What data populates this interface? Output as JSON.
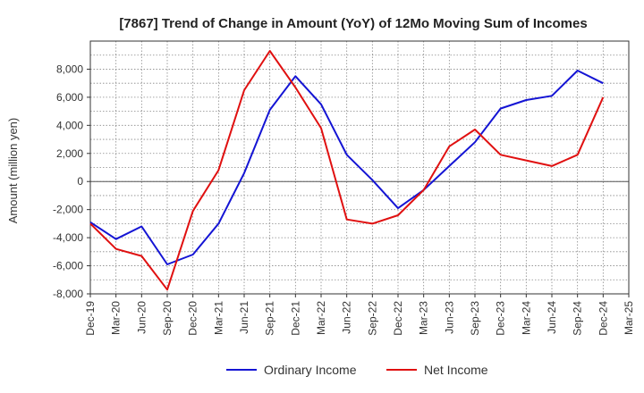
{
  "chart_data": {
    "type": "line",
    "title": "[7867]  Trend of Change in Amount (YoY) of 12Mo Moving Sum of Incomes",
    "ylabel": "Amount (million yen)",
    "xlabel": "",
    "ylim": [
      -8000,
      10000
    ],
    "yticks": [
      -8000,
      -6000,
      -4000,
      -2000,
      0,
      2000,
      4000,
      6000,
      8000
    ],
    "ytick_labels": [
      "-8,000",
      "-6,000",
      "-4,000",
      "-2,000",
      "0",
      "2,000",
      "4,000",
      "6,000",
      "8,000"
    ],
    "x_labels": [
      "Dec-19",
      "Mar-20",
      "Jun-20",
      "Sep-20",
      "Dec-20",
      "Mar-21",
      "Jun-21",
      "Sep-21",
      "Dec-21",
      "Mar-22",
      "Jun-22",
      "Sep-22",
      "Dec-22",
      "Mar-23",
      "Jun-23",
      "Sep-23",
      "Dec-23",
      "Mar-24",
      "Jun-24",
      "Sep-24",
      "Dec-24",
      "Mar-25"
    ],
    "grid": true,
    "legend_position": "bottom",
    "series": [
      {
        "name": "Ordinary Income",
        "color": "#1414d4",
        "values": [
          -2900,
          -4100,
          -3200,
          -5900,
          -5200,
          -3000,
          600,
          5100,
          7500,
          5500,
          1900,
          100,
          -1900,
          -600,
          1100,
          2800,
          5200,
          5800,
          6100,
          7900,
          7000,
          null
        ]
      },
      {
        "name": "Net Income",
        "color": "#e01010",
        "values": [
          -3000,
          -4800,
          -5300,
          -7700,
          -2100,
          800,
          6500,
          9300,
          6700,
          3800,
          -2700,
          -3000,
          -2400,
          -600,
          2500,
          3700,
          1900,
          1500,
          1100,
          1900,
          6000,
          null
        ]
      }
    ]
  }
}
